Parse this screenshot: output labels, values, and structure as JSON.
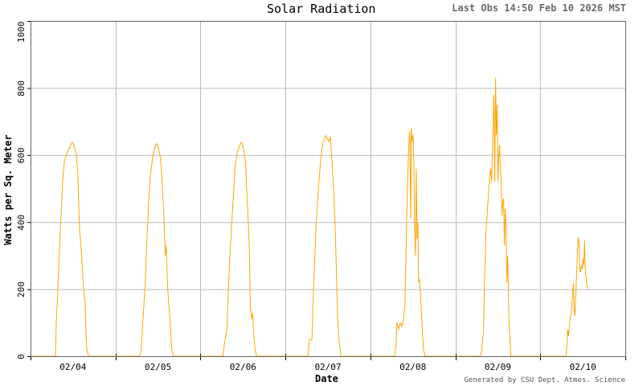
{
  "header": {
    "title": "Solar Radiation",
    "last_obs": "Last Obs 14:50 Feb 10 2026 MST"
  },
  "footer": {
    "credit": "Generated by CSU Dept. Atmos. Science"
  },
  "colors": {
    "series": "#ffa500",
    "grid": "#bbbbbb",
    "axis": "#666666",
    "background": "#ffffff"
  },
  "chart_data": {
    "type": "line",
    "title": "Solar Radiation",
    "xlabel": "Date",
    "ylabel": "Watts per Sq. Meter",
    "ylim": [
      0,
      1000
    ],
    "yticks": [
      0,
      200,
      400,
      600,
      800,
      1000
    ],
    "categories": [
      "02/04",
      "02/05",
      "02/06",
      "02/07",
      "02/08",
      "02/09",
      "02/10"
    ],
    "grid": true,
    "legend": "none",
    "series": [
      {
        "name": "Solar Radiation",
        "days": [
          {
            "date": "02/04",
            "peak": 635,
            "points": [
              [
                0,
                0
              ],
              [
                31,
                0
              ],
              [
                32,
                100
              ],
              [
                34,
                200
              ],
              [
                36,
                320
              ],
              [
                38,
                420
              ],
              [
                40,
                520
              ],
              [
                42,
                580
              ],
              [
                46,
                610
              ],
              [
                50,
                630
              ],
              [
                52,
                638
              ],
              [
                54,
                630
              ],
              [
                57,
                600
              ],
              [
                59,
                540
              ],
              [
                60,
                450
              ],
              [
                61,
                380
              ],
              [
                63,
                320
              ],
              [
                64,
                280
              ],
              [
                66,
                200
              ],
              [
                68,
                160
              ],
              [
                69,
                60
              ],
              [
                70,
                20
              ],
              [
                72,
                0
              ],
              [
                105,
                0
              ]
            ]
          },
          {
            "date": "02/05",
            "peak": 635,
            "points": [
              [
                0,
                0
              ],
              [
                30,
                0
              ],
              [
                32,
                20
              ],
              [
                34,
                100
              ],
              [
                37,
                220
              ],
              [
                39,
                340
              ],
              [
                41,
                450
              ],
              [
                43,
                530
              ],
              [
                46,
                590
              ],
              [
                49,
                625
              ],
              [
                51,
                635
              ],
              [
                53,
                625
              ],
              [
                56,
                590
              ],
              [
                58,
                520
              ],
              [
                60,
                430
              ],
              [
                62,
                300
              ],
              [
                63,
                330
              ],
              [
                65,
                200
              ],
              [
                68,
                100
              ],
              [
                70,
                20
              ],
              [
                72,
                0
              ],
              [
                105,
                0
              ]
            ]
          },
          {
            "date": "02/06",
            "peak": 638,
            "points": [
              [
                0,
                0
              ],
              [
                28,
                0
              ],
              [
                30,
                40
              ],
              [
                33,
                80
              ],
              [
                35,
                220
              ],
              [
                38,
                360
              ],
              [
                41,
                480
              ],
              [
                43,
                560
              ],
              [
                46,
                610
              ],
              [
                49,
                630
              ],
              [
                51,
                638
              ],
              [
                53,
                625
              ],
              [
                56,
                580
              ],
              [
                58,
                470
              ],
              [
                60,
                380
              ],
              [
                61,
                300
              ],
              [
                62,
                150
              ],
              [
                64,
                110
              ],
              [
                65,
                130
              ],
              [
                66,
                70
              ],
              [
                68,
                20
              ],
              [
                70,
                0
              ],
              [
                106,
                0
              ]
            ]
          },
          {
            "date": "02/07",
            "peak": 658,
            "points": [
              [
                0,
                0
              ],
              [
                28,
                0
              ],
              [
                30,
                50
              ],
              [
                33,
                50
              ],
              [
                35,
                200
              ],
              [
                38,
                380
              ],
              [
                41,
                500
              ],
              [
                44,
                590
              ],
              [
                47,
                640
              ],
              [
                50,
                658
              ],
              [
                52,
                650
              ],
              [
                54,
                640
              ],
              [
                56,
                655
              ],
              [
                58,
                580
              ],
              [
                60,
                490
              ],
              [
                62,
                380
              ],
              [
                64,
                200
              ],
              [
                65,
                110
              ],
              [
                67,
                40
              ],
              [
                69,
                0
              ],
              [
                106,
                0
              ]
            ]
          },
          {
            "date": "02/08",
            "peak": 683,
            "points": [
              [
                0,
                0
              ],
              [
                30,
                0
              ],
              [
                32,
                40
              ],
              [
                33,
                100
              ],
              [
                35,
                80
              ],
              [
                37,
                100
              ],
              [
                39,
                90
              ],
              [
                41,
                110
              ],
              [
                43,
                150
              ],
              [
                45,
                400
              ],
              [
                47,
                580
              ],
              [
                48,
                640
              ],
              [
                49,
                670
              ],
              [
                50,
                410
              ],
              [
                51,
                680
              ],
              [
                52,
                640
              ],
              [
                53,
                660
              ],
              [
                54,
                580
              ],
              [
                55,
                380
              ],
              [
                56,
                300
              ],
              [
                57,
                560
              ],
              [
                58,
                350
              ],
              [
                59,
                400
              ],
              [
                60,
                220
              ],
              [
                61,
                230
              ],
              [
                62,
                200
              ],
              [
                64,
                100
              ],
              [
                66,
                20
              ],
              [
                68,
                0
              ],
              [
                106,
                0
              ]
            ]
          },
          {
            "date": "02/09",
            "peak": 840,
            "points": [
              [
                0,
                0
              ],
              [
                31,
                0
              ],
              [
                33,
                20
              ],
              [
                35,
                80
              ],
              [
                36,
                200
              ],
              [
                38,
                370
              ],
              [
                40,
                440
              ],
              [
                42,
                520
              ],
              [
                44,
                560
              ],
              [
                45,
                520
              ],
              [
                46,
                600
              ],
              [
                47,
                700
              ],
              [
                48,
                780
              ],
              [
                49,
                520
              ],
              [
                50,
                830
              ],
              [
                51,
                660
              ],
              [
                52,
                750
              ],
              [
                53,
                520
              ],
              [
                54,
                600
              ],
              [
                55,
                630
              ],
              [
                56,
                560
              ],
              [
                57,
                520
              ],
              [
                58,
                420
              ],
              [
                59,
                460
              ],
              [
                60,
                470
              ],
              [
                61,
                330
              ],
              [
                62,
                440
              ],
              [
                63,
                380
              ],
              [
                64,
                220
              ],
              [
                65,
                300
              ],
              [
                66,
                180
              ],
              [
                67,
                80
              ],
              [
                69,
                0
              ],
              [
                106,
                0
              ]
            ]
          },
          {
            "date": "02/10",
            "peak": 355,
            "points": [
              [
                0,
                0
              ],
              [
                32,
                0
              ],
              [
                33,
                40
              ],
              [
                34,
                80
              ],
              [
                35,
                60
              ],
              [
                37,
                110
              ],
              [
                39,
                140
              ],
              [
                41,
                220
              ],
              [
                42,
                140
              ],
              [
                43,
                120
              ],
              [
                45,
                240
              ],
              [
                46,
                300
              ],
              [
                47,
                355
              ],
              [
                48,
                340
              ],
              [
                49,
                260
              ],
              [
                50,
                250
              ],
              [
                51,
                270
              ],
              [
                52,
                260
              ],
              [
                53,
                290
              ],
              [
                54,
                270
              ],
              [
                55,
                345
              ],
              [
                56,
                250
              ],
              [
                57,
                230
              ],
              [
                58,
                210
              ],
              [
                59,
                200
              ]
            ]
          }
        ]
      }
    ]
  }
}
